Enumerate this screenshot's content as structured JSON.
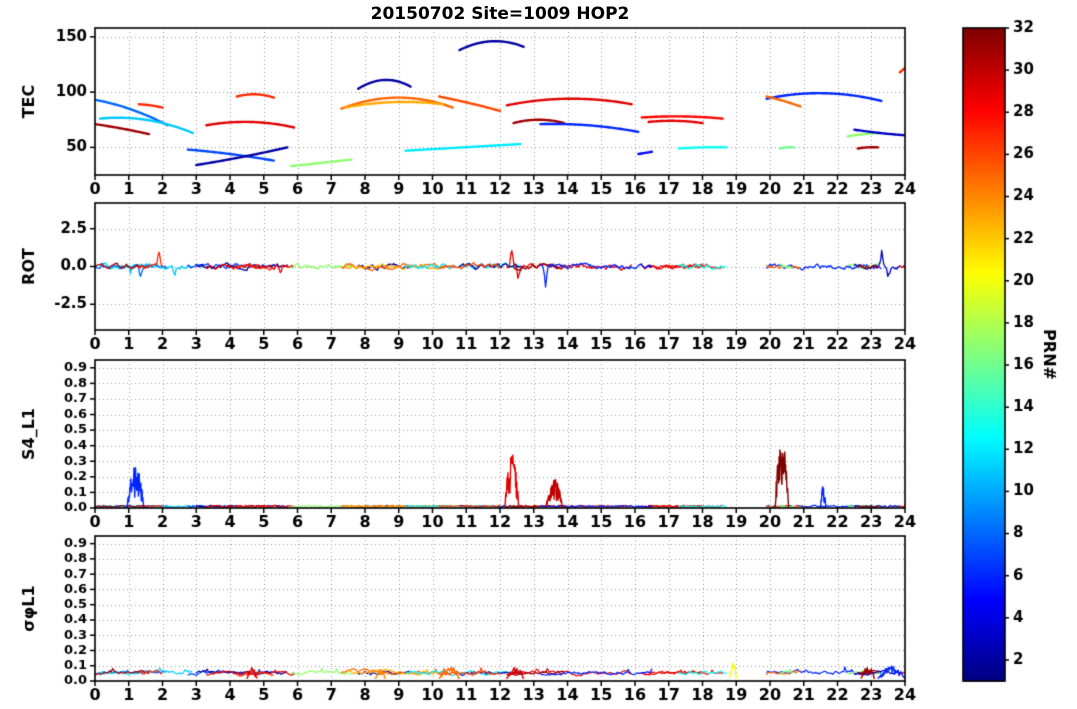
{
  "title": "20150702 Site=1009 HOP2",
  "colorbar": {
    "label": "PRN#",
    "min": 1,
    "max": 32,
    "ticks": [
      2,
      4,
      6,
      8,
      10,
      12,
      14,
      16,
      18,
      20,
      22,
      24,
      26,
      28,
      30,
      32
    ]
  },
  "chart_data": {
    "type": "line",
    "title": "20150702 Site=1009 HOP2",
    "xlabel": "",
    "x_range": [
      0,
      24
    ],
    "x_ticks": [
      0,
      1,
      2,
      3,
      4,
      5,
      6,
      7,
      8,
      9,
      10,
      11,
      12,
      13,
      14,
      15,
      16,
      17,
      18,
      19,
      20,
      21,
      22,
      23,
      24
    ],
    "grid": true,
    "colormap": "jet",
    "colorbar_label": "PRN#",
    "panels": [
      {
        "id": "tec",
        "ylabel": "TEC",
        "ylim": [
          25,
          158
        ],
        "yticks": [
          50,
          100,
          150
        ],
        "ytick_labels": [
          "50",
          "100",
          "150"
        ]
      },
      {
        "id": "rot",
        "ylabel": "ROT",
        "ylim": [
          -4.2,
          4.2
        ],
        "yticks": [
          -2.5,
          0,
          2.5
        ],
        "ytick_labels": [
          "-2.5",
          "0.0",
          "2.5"
        ]
      },
      {
        "id": "s4",
        "ylabel": "S4_L1",
        "ylim": [
          0,
          0.95
        ],
        "yticks": [
          0,
          0.1,
          0.2,
          0.3,
          0.4,
          0.5,
          0.6,
          0.7,
          0.8,
          0.9
        ],
        "ytick_labels": [
          "0.0",
          "0.1",
          "0.2",
          "0.3",
          "0.4",
          "0.5",
          "0.6",
          "0.7",
          "0.8",
          "0.9"
        ]
      },
      {
        "id": "sigma",
        "ylabel": "σφL1",
        "ylim": [
          0,
          0.95
        ],
        "yticks": [
          0,
          0.1,
          0.2,
          0.3,
          0.4,
          0.5,
          0.6,
          0.7,
          0.8,
          0.9
        ],
        "ytick_labels": [
          "0.0",
          "0.1",
          "0.2",
          "0.3",
          "0.4",
          "0.5",
          "0.6",
          "0.7",
          "0.8",
          "0.9"
        ]
      }
    ],
    "arcs": [
      {
        "prn": 8,
        "points": [
          [
            0.0,
            93
          ],
          [
            1.1,
            84
          ],
          [
            2.15,
            70
          ]
        ]
      },
      {
        "prn": 11,
        "points": [
          [
            0.15,
            76
          ],
          [
            1.5,
            75
          ],
          [
            2.9,
            63
          ]
        ]
      },
      {
        "prn": 31,
        "points": [
          [
            0.0,
            71
          ],
          [
            0.8,
            67
          ],
          [
            1.6,
            62
          ]
        ]
      },
      {
        "prn": 27,
        "points": [
          [
            1.3,
            89
          ],
          [
            1.65,
            88
          ],
          [
            2.0,
            86
          ]
        ]
      },
      {
        "prn": 7,
        "points": [
          [
            2.75,
            48
          ],
          [
            4.0,
            44
          ],
          [
            5.3,
            38
          ]
        ]
      },
      {
        "prn": 2,
        "points": [
          [
            3.0,
            34
          ],
          [
            4.3,
            41
          ],
          [
            5.7,
            50
          ]
        ]
      },
      {
        "prn": 29,
        "points": [
          [
            3.3,
            70
          ],
          [
            4.6,
            73
          ],
          [
            5.9,
            68
          ]
        ]
      },
      {
        "prn": 27,
        "points": [
          [
            4.2,
            96
          ],
          [
            4.75,
            98
          ],
          [
            5.3,
            95
          ]
        ]
      },
      {
        "prn": 17,
        "points": [
          [
            5.8,
            33
          ],
          [
            6.7,
            36
          ],
          [
            7.6,
            39
          ]
        ]
      },
      {
        "prn": 2,
        "points": [
          [
            7.8,
            103
          ],
          [
            8.6,
            111
          ],
          [
            9.35,
            105
          ]
        ]
      },
      {
        "prn": 25,
        "points": [
          [
            7.3,
            85
          ],
          [
            9.0,
            95
          ],
          [
            10.6,
            86
          ]
        ]
      },
      {
        "prn": 23,
        "points": [
          [
            7.4,
            86
          ],
          [
            8.9,
            91
          ],
          [
            10.3,
            89
          ]
        ]
      },
      {
        "prn": 12,
        "points": [
          [
            9.2,
            47
          ],
          [
            10.9,
            50
          ],
          [
            12.6,
            53
          ]
        ]
      },
      {
        "prn": 2,
        "points": [
          [
            10.8,
            138
          ],
          [
            11.75,
            146
          ],
          [
            12.7,
            141
          ]
        ]
      },
      {
        "prn": 26,
        "points": [
          [
            10.2,
            96
          ],
          [
            11.1,
            90
          ],
          [
            12.0,
            83
          ]
        ]
      },
      {
        "prn": 29,
        "points": [
          [
            12.2,
            88
          ],
          [
            14.0,
            94
          ],
          [
            15.9,
            89
          ]
        ]
      },
      {
        "prn": 31,
        "points": [
          [
            12.4,
            72
          ],
          [
            13.15,
            75
          ],
          [
            13.9,
            72
          ]
        ]
      },
      {
        "prn": 6,
        "points": [
          [
            13.2,
            71
          ],
          [
            14.6,
            70
          ],
          [
            16.1,
            64
          ]
        ]
      },
      {
        "prn": 28,
        "points": [
          [
            16.2,
            77
          ],
          [
            17.4,
            78
          ],
          [
            18.6,
            76
          ]
        ]
      },
      {
        "prn": 29,
        "points": [
          [
            16.4,
            73
          ],
          [
            17.2,
            74
          ],
          [
            18.0,
            72
          ]
        ]
      },
      {
        "prn": 5,
        "points": [
          [
            16.1,
            44
          ],
          [
            16.3,
            45
          ],
          [
            16.5,
            46
          ]
        ]
      },
      {
        "prn": 13,
        "points": [
          [
            17.3,
            49
          ],
          [
            18.0,
            50
          ],
          [
            18.7,
            50
          ]
        ]
      },
      {
        "prn": 6,
        "points": [
          [
            19.9,
            94
          ],
          [
            21.6,
            99
          ],
          [
            23.3,
            92
          ]
        ]
      },
      {
        "prn": 25,
        "points": [
          [
            19.9,
            96
          ],
          [
            20.4,
            92
          ],
          [
            20.9,
            87
          ]
        ]
      },
      {
        "prn": 16,
        "points": [
          [
            20.3,
            49
          ],
          [
            20.5,
            50
          ],
          [
            20.7,
            50
          ]
        ]
      },
      {
        "prn": 17,
        "points": [
          [
            22.3,
            60
          ],
          [
            22.8,
            62
          ],
          [
            23.3,
            63
          ]
        ]
      },
      {
        "prn": 3,
        "points": [
          [
            22.5,
            66
          ],
          [
            23.25,
            63
          ],
          [
            24.0,
            61
          ]
        ]
      },
      {
        "prn": 31,
        "points": [
          [
            22.6,
            49
          ],
          [
            22.9,
            50
          ],
          [
            23.2,
            50
          ]
        ]
      },
      {
        "prn": 27,
        "points": [
          [
            23.85,
            118
          ],
          [
            23.93,
            120
          ],
          [
            24.0,
            122
          ]
        ]
      }
    ],
    "rot_noise": {
      "amp": 0.22,
      "spikes": [
        {
          "prn": 27,
          "t": 1.9,
          "amp": 1.1
        },
        {
          "prn": 8,
          "t": 1.35,
          "amp": -0.85
        },
        {
          "prn": 11,
          "t": 1.05,
          "amp": -0.6
        },
        {
          "prn": 11,
          "t": 2.35,
          "amp": -0.75
        },
        {
          "prn": 29,
          "t": 5.5,
          "amp": -0.55
        },
        {
          "prn": 29,
          "t": 12.35,
          "amp": 1.5
        },
        {
          "prn": 29,
          "t": 12.55,
          "amp": -0.8
        },
        {
          "prn": 6,
          "t": 13.35,
          "amp": -1.7
        },
        {
          "prn": 3,
          "t": 23.3,
          "amp": 1.2
        },
        {
          "prn": 3,
          "t": 23.5,
          "amp": -0.9
        }
      ]
    },
    "s4": {
      "baseline": 0.012,
      "spikes": [
        {
          "prn": 6,
          "t0": 0.95,
          "t1": 1.45,
          "peak": 0.27
        },
        {
          "prn": 29,
          "t0": 12.15,
          "t1": 12.55,
          "peak": 0.37
        },
        {
          "prn": 30,
          "t0": 13.35,
          "t1": 13.85,
          "peak": 0.2
        },
        {
          "prn": 32,
          "t0": 20.15,
          "t1": 20.55,
          "peak": 0.46
        },
        {
          "prn": 6,
          "t0": 21.5,
          "t1": 21.65,
          "peak": 0.14
        }
      ]
    },
    "sigma": {
      "baseline": 0.045,
      "bumps": [
        {
          "prn": 25,
          "t0": 10.2,
          "t1": 10.8,
          "peak": 0.11
        },
        {
          "prn": 29,
          "t0": 12.2,
          "t1": 12.7,
          "peak": 0.1
        },
        {
          "prn": 20,
          "t0": 18.8,
          "t1": 19.0,
          "peak": 0.16
        },
        {
          "prn": 29,
          "t0": 4.5,
          "t1": 4.8,
          "peak": 0.09
        },
        {
          "prn": 6,
          "t0": 23.2,
          "t1": 24.0,
          "peak": 0.1
        },
        {
          "prn": 31,
          "t0": 22.7,
          "t1": 23.1,
          "peak": 0.1
        },
        {
          "prn": 24,
          "t0": 8.3,
          "t1": 8.6,
          "peak": 0.08
        }
      ]
    }
  }
}
